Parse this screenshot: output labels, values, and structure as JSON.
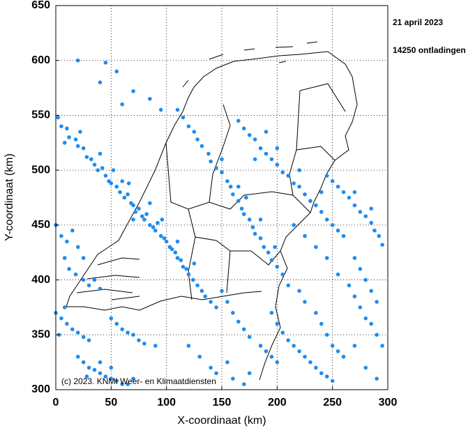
{
  "chart_data": {
    "type": "scatter",
    "date": "21 april 2023",
    "count_label": "14250 ontladingen",
    "copyright": "(c) 2023. KNMI Weer- en Klimaatdiensten",
    "x_label": "X-coordinaat (km)",
    "y_label": "Y-coordinaat (km)",
    "color": "#1e8cf0",
    "grid": true,
    "xlim": [
      0,
      300
    ],
    "xticks": [
      0,
      50,
      100,
      150,
      200,
      250,
      300
    ],
    "ylim": [
      300,
      650
    ],
    "yticks": [
      300,
      350,
      400,
      450,
      500,
      550,
      600,
      650
    ],
    "x": [
      2,
      5,
      10,
      12,
      18,
      20,
      25,
      28,
      32,
      35,
      38,
      42,
      45,
      48,
      50,
      55,
      58,
      60,
      62,
      65,
      68,
      70,
      72,
      75,
      78,
      80,
      82,
      85,
      88,
      90,
      92,
      95,
      98,
      100,
      103,
      105,
      108,
      110,
      113,
      115,
      118,
      120,
      124,
      128,
      132,
      135,
      140,
      145,
      8,
      22,
      40,
      52,
      66,
      85,
      70,
      96,
      110,
      125,
      20,
      45,
      55,
      70,
      85,
      95,
      60,
      40,
      110,
      115,
      120,
      125,
      128,
      132,
      138,
      140,
      145,
      150,
      155,
      158,
      160,
      165,
      168,
      170,
      175,
      178,
      180,
      185,
      188,
      192,
      195,
      200,
      205,
      210,
      150,
      165,
      172,
      185,
      198,
      165,
      170,
      175,
      180,
      185,
      190,
      195,
      200,
      205,
      210,
      215,
      220,
      225,
      230,
      235,
      240,
      245,
      250,
      255,
      260,
      180,
      200,
      220,
      240,
      190,
      245,
      250,
      255,
      260,
      265,
      270,
      275,
      280,
      285,
      288,
      292,
      295,
      270,
      285,
      215,
      225,
      235,
      245,
      255,
      265,
      270,
      275,
      280,
      285,
      290,
      295,
      0,
      5,
      10,
      15,
      20,
      25,
      8,
      12,
      18,
      25,
      30,
      35,
      40,
      0,
      5,
      10,
      15,
      20,
      25,
      30,
      8,
      3,
      20,
      25,
      30,
      35,
      40,
      45,
      50,
      55,
      60,
      65,
      70,
      28,
      40,
      50,
      50,
      55,
      60,
      65,
      70,
      75,
      80,
      90,
      150,
      155,
      160,
      165,
      170,
      175,
      185,
      190,
      195,
      200,
      195,
      200,
      205,
      210,
      215,
      220,
      225,
      230,
      235,
      240,
      245,
      250,
      220,
      225,
      235,
      240,
      245,
      250,
      255,
      260,
      120,
      130,
      140,
      145,
      155,
      160,
      170,
      175,
      270,
      275,
      280,
      285,
      290,
      280,
      290,
      270
    ],
    "values": [
      548,
      540,
      538,
      530,
      528,
      522,
      520,
      512,
      510,
      505,
      500,
      502,
      495,
      490,
      488,
      485,
      480,
      490,
      475,
      478,
      470,
      468,
      462,
      465,
      458,
      455,
      460,
      450,
      448,
      445,
      452,
      440,
      438,
      435,
      430,
      428,
      425,
      420,
      418,
      412,
      410,
      405,
      400,
      395,
      390,
      385,
      380,
      375,
      525,
      535,
      515,
      500,
      488,
      470,
      455,
      455,
      435,
      415,
      600,
      598,
      590,
      572,
      565,
      555,
      560,
      580,
      555,
      548,
      540,
      535,
      528,
      522,
      515,
      508,
      502,
      498,
      490,
      485,
      478,
      472,
      465,
      460,
      455,
      448,
      442,
      438,
      430,
      425,
      418,
      412,
      405,
      395,
      510,
      485,
      475,
      455,
      430,
      545,
      538,
      532,
      528,
      520,
      515,
      510,
      505,
      498,
      495,
      488,
      485,
      478,
      472,
      468,
      462,
      455,
      450,
      445,
      440,
      510,
      520,
      500,
      480,
      535,
      495,
      490,
      485,
      480,
      475,
      468,
      462,
      458,
      452,
      445,
      440,
      432,
      480,
      465,
      450,
      440,
      430,
      420,
      405,
      395,
      385,
      375,
      365,
      360,
      350,
      340,
      450,
      440,
      435,
      445,
      430,
      420,
      420,
      410,
      405,
      400,
      395,
      400,
      392,
      370,
      365,
      360,
      355,
      352,
      348,
      345,
      375,
      350,
      330,
      325,
      320,
      318,
      315,
      312,
      310,
      308,
      305,
      305,
      310,
      312,
      325,
      320,
      365,
      360,
      355,
      352,
      350,
      345,
      342,
      340,
      390,
      380,
      370,
      362,
      355,
      348,
      340,
      335,
      330,
      325,
      370,
      360,
      352,
      345,
      340,
      335,
      330,
      325,
      320,
      315,
      312,
      308,
      390,
      380,
      370,
      360,
      350,
      340,
      335,
      330,
      340,
      330,
      320,
      315,
      325,
      310,
      305,
      315,
      420,
      410,
      400,
      390,
      380,
      320,
      310,
      340
    ]
  }
}
